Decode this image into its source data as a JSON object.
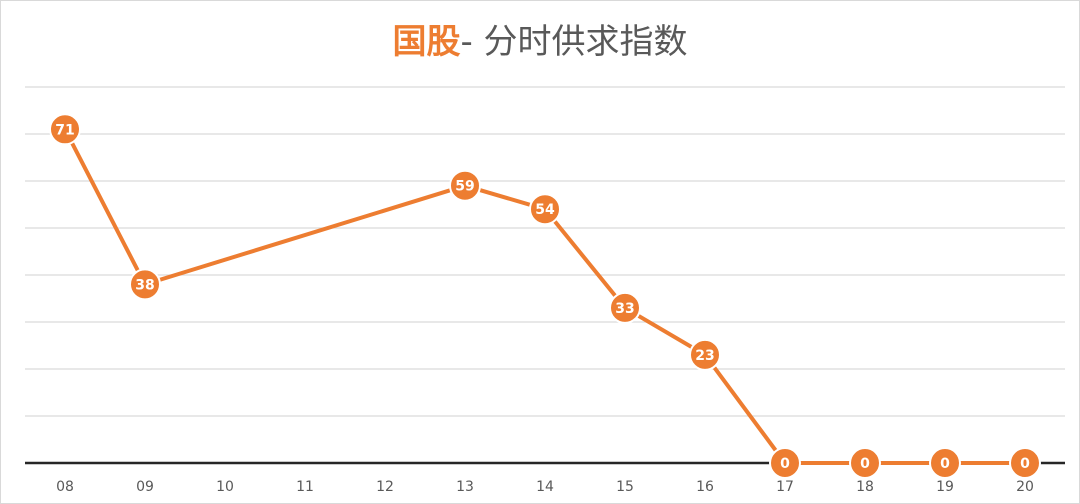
{
  "chart_data": {
    "type": "line",
    "title_accent": "国股",
    "title_rest": "- 分时供求指数",
    "categories": [
      "08",
      "09",
      "10",
      "11",
      "12",
      "13",
      "14",
      "15",
      "16",
      "17",
      "18",
      "19",
      "20"
    ],
    "series": [
      {
        "values": [
          71,
          38,
          null,
          null,
          null,
          59,
          54,
          33,
          23,
          0,
          0,
          0,
          0
        ]
      }
    ],
    "ylim": [
      0,
      80
    ],
    "grid": true,
    "y_tick_labels_visible": false,
    "colors": {
      "series": "#ed7d31",
      "grid": "#d9d9d9",
      "axis": "#262626",
      "title_rest": "#595959"
    }
  }
}
